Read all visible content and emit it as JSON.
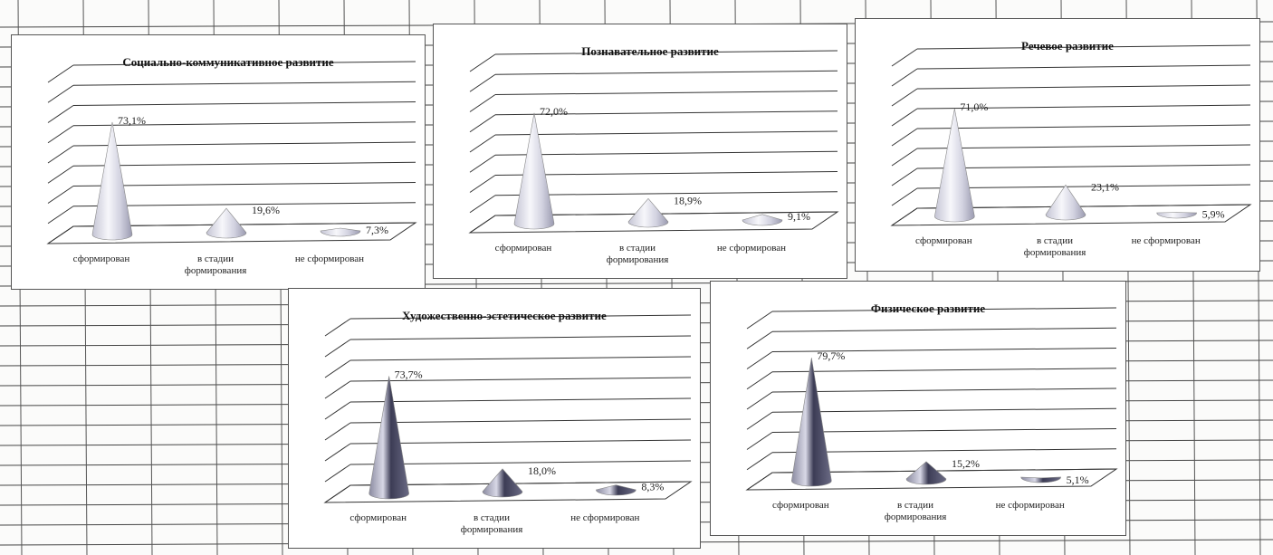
{
  "chart_data": [
    {
      "type": "bar",
      "title": "Социально-коммуникативное развитие",
      "categories": [
        "сформирован",
        "в стадии формирования",
        "не сформирован"
      ],
      "values": [
        73.1,
        19.6,
        7.3
      ],
      "data_labels": [
        "73,1%",
        "19,6%",
        "7,3%"
      ],
      "ylim": [
        0,
        100
      ],
      "grid": true
    },
    {
      "type": "bar",
      "title": "Познавательное развитие",
      "categories": [
        "сформирован",
        "в стадии формирования",
        "не сформирован"
      ],
      "values": [
        72.0,
        18.9,
        9.1
      ],
      "data_labels": [
        "72,0%",
        "18,9%",
        "9,1%"
      ],
      "ylim": [
        0,
        100
      ],
      "grid": true
    },
    {
      "type": "bar",
      "title": "Речевое развитие",
      "categories": [
        "сформирован",
        "в стадии формирования",
        "не сформирован"
      ],
      "values": [
        71.0,
        23.1,
        5.9
      ],
      "data_labels": [
        "71,0%",
        "23,1%",
        "5,9%"
      ],
      "ylim": [
        0,
        100
      ],
      "grid": true
    },
    {
      "type": "bar",
      "title": "Художественно-эстетическое развитие",
      "categories": [
        "сформирован",
        "в стадии формирования",
        "не сформирован"
      ],
      "values": [
        73.7,
        18.0,
        8.3
      ],
      "data_labels": [
        "73,7%",
        "18,0%",
        "8,3%"
      ],
      "ylim": [
        0,
        100
      ],
      "grid": true
    },
    {
      "type": "bar",
      "title": "Физическое развитие",
      "categories": [
        "сформирован",
        "в стадии формирования",
        "не сформирован"
      ],
      "values": [
        79.7,
        15.2,
        5.1
      ],
      "data_labels": [
        "79,7%",
        "15,2%",
        "5,1%"
      ],
      "ylim": [
        0,
        100
      ],
      "grid": true
    }
  ],
  "colors": {
    "cone_light": "#e9e9f2",
    "cone_mid": "#a8a8bc",
    "cone_dark": "#3c3c55"
  }
}
